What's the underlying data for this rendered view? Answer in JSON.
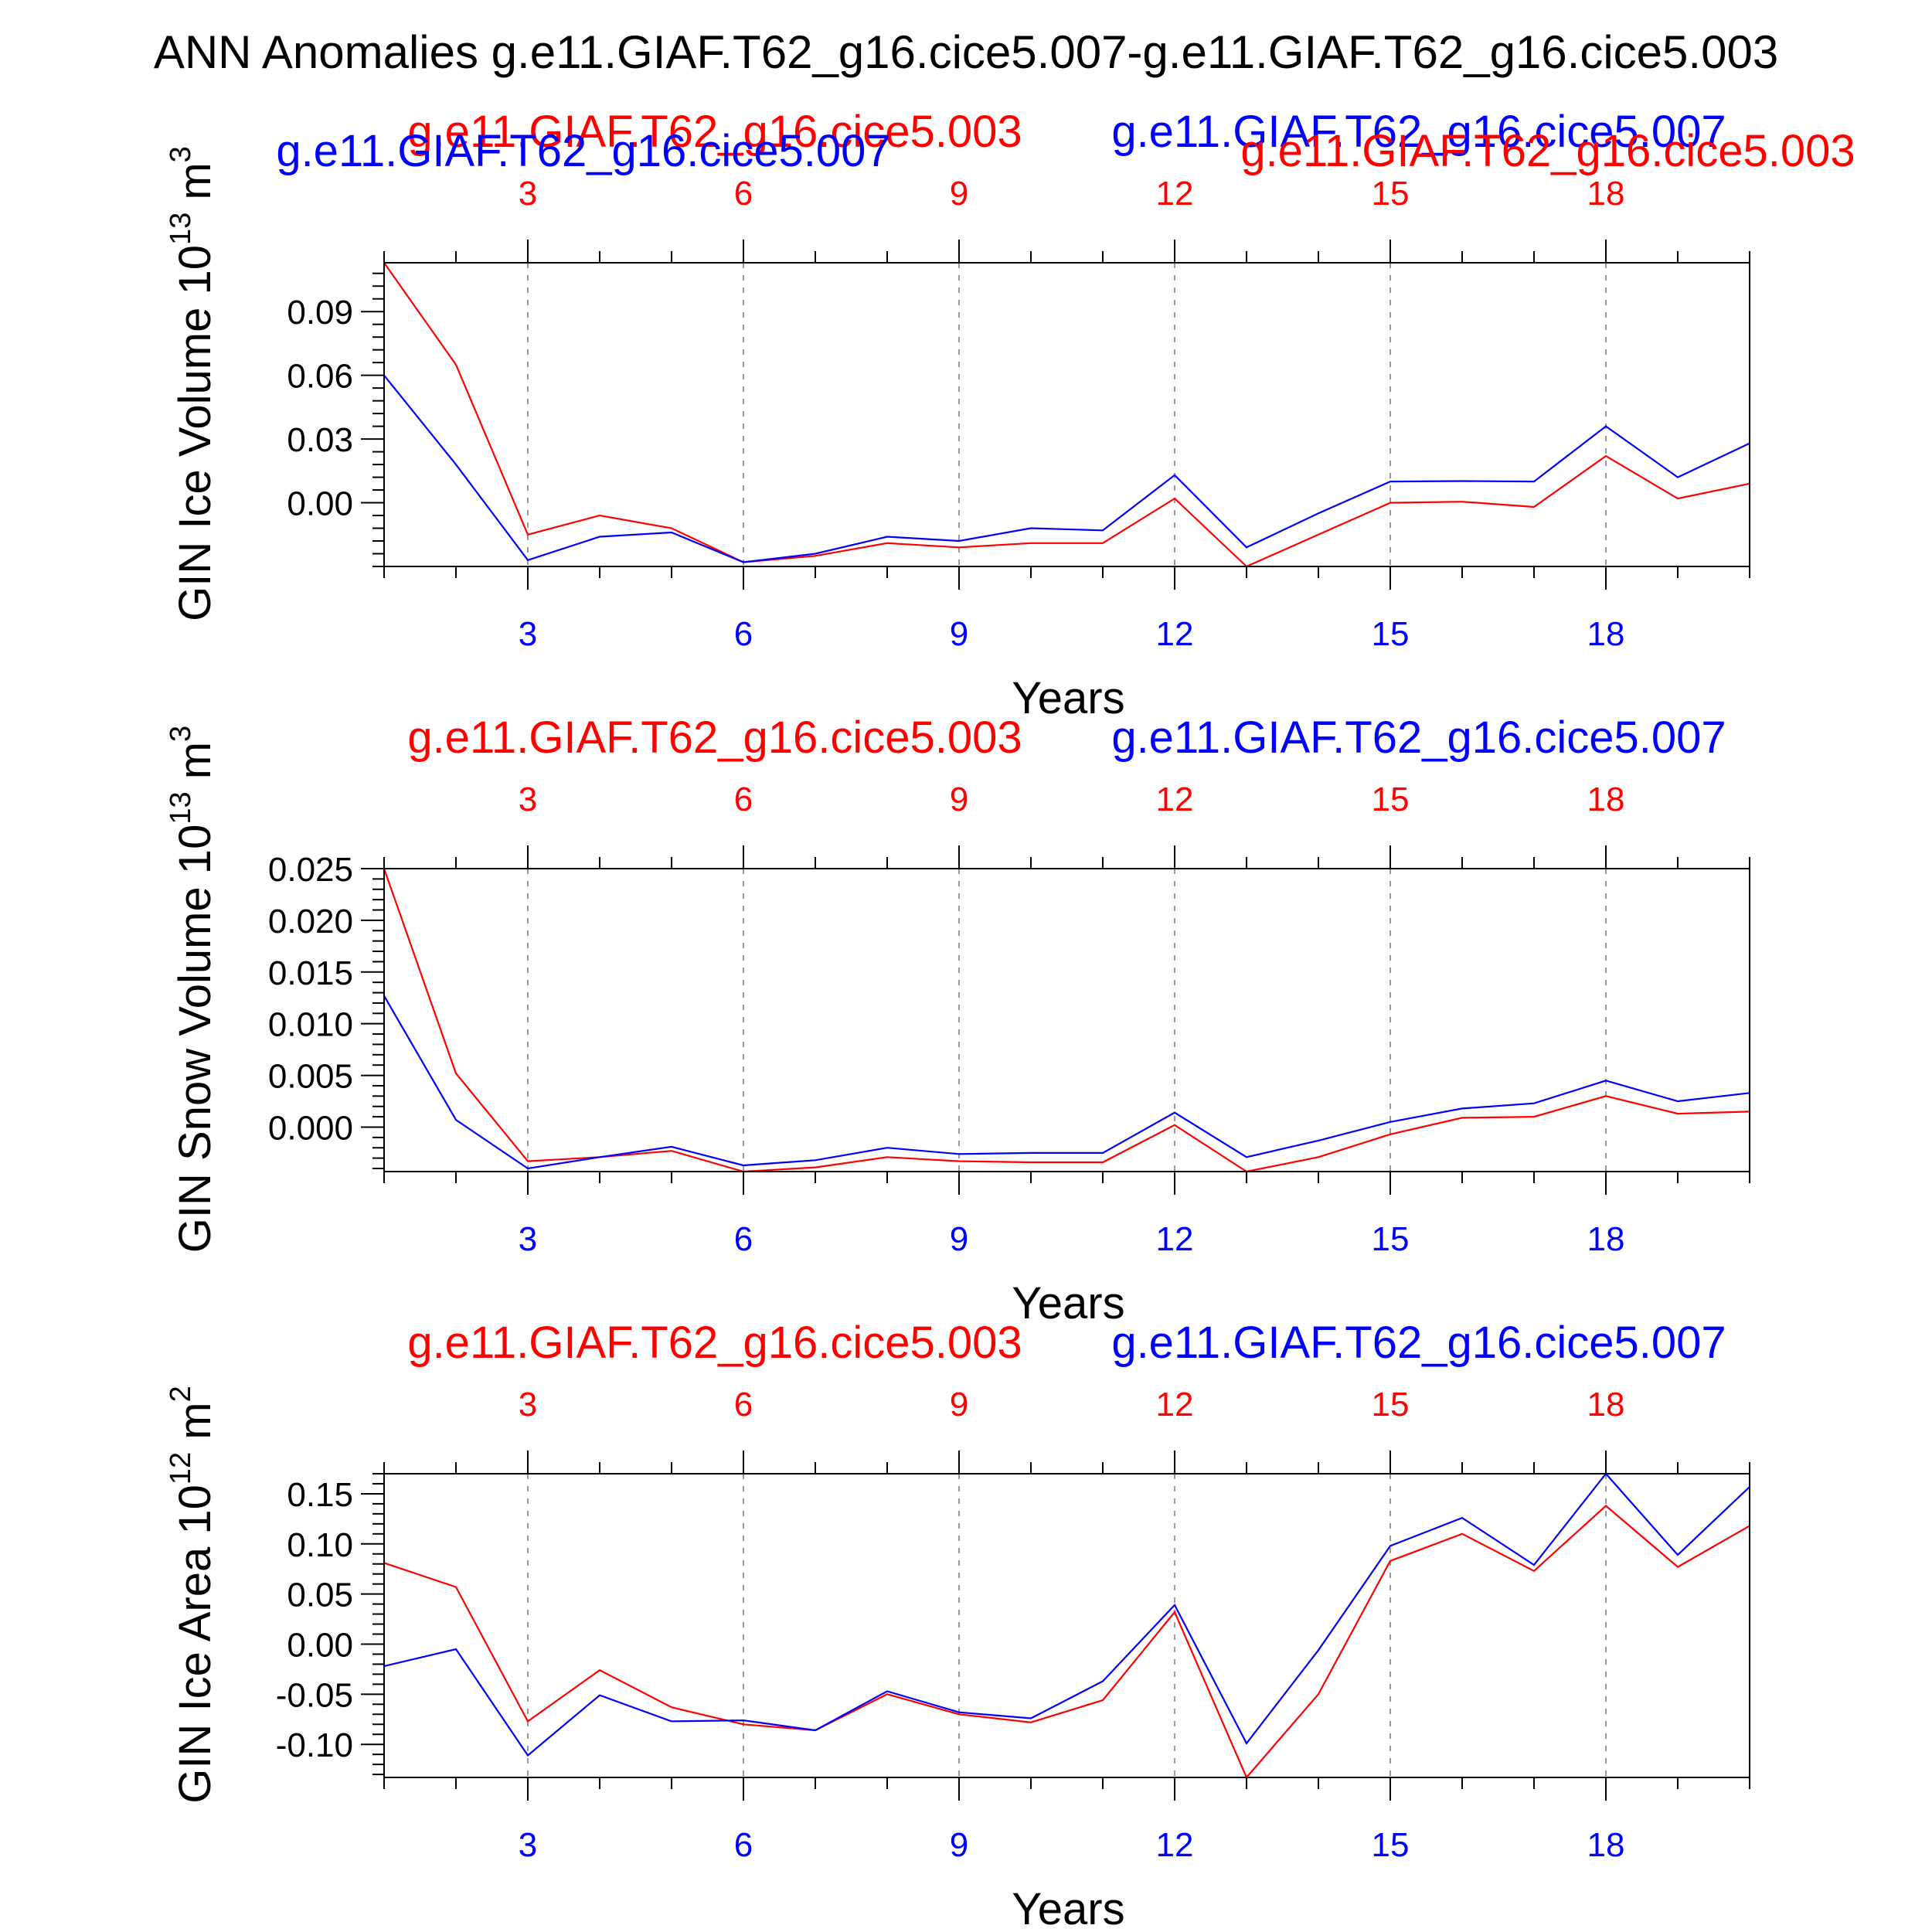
{
  "title": "ANN Anomalies g.e11.GIAF.T62_g16.cice5.007-g.e11.GIAF.T62_g16.cice5.003",
  "colors": {
    "case1": "#ff0000",
    "case2": "#0000ff",
    "axis": "#000000",
    "grid": "#999999"
  },
  "chart_data": [
    {
      "type": "line",
      "ylabel": "GIN Ice Volume 10",
      "ylabel_exp": "13",
      "ylabel_unit": " m",
      "ylabel_unit_exp": "3",
      "xlabel": "Years",
      "xlim": [
        1,
        20
      ],
      "ylim": [
        -0.03,
        0.113
      ],
      "yticks": [
        0.0,
        0.03,
        0.06,
        0.09
      ],
      "ytick_labels": [
        "0.00",
        "0.03",
        "0.06",
        "0.09"
      ],
      "xticks": [
        3,
        6,
        9,
        12,
        15,
        18
      ],
      "xtick_labels": [
        "3",
        "6",
        "9",
        "12",
        "15",
        "18"
      ],
      "grid": "dashed vertical at major x ticks",
      "case_labels": {
        "red": "g.e11.GIAF.T62_g16.cice5.003",
        "blue": "g.e11.GIAF.T62_g16.cice5.007",
        "extra": [
          "g.e11.GIAF.T62_g16.cice5.007",
          "g.e11.GIAF.T62_g16.cice5.003"
        ]
      },
      "x": [
        1,
        2,
        3,
        4,
        5,
        6,
        7,
        8,
        9,
        10,
        11,
        12,
        13,
        14,
        15,
        16,
        17,
        18,
        19,
        20
      ],
      "series": [
        {
          "name": "g.e11.GIAF.T62_g16.cice5.003",
          "color": "#ff0000",
          "values": [
            0.113,
            0.065,
            -0.015,
            -0.006,
            -0.012,
            -0.028,
            -0.025,
            -0.019,
            -0.021,
            -0.019,
            -0.019,
            0.002,
            -0.03,
            -0.015,
            0.0,
            0.0005,
            -0.002,
            0.022,
            0.002,
            0.009
          ]
        },
        {
          "name": "g.e11.GIAF.T62_g16.cice5.007",
          "color": "#0000ff",
          "values": [
            0.06,
            0.018,
            -0.027,
            -0.016,
            -0.014,
            -0.028,
            -0.024,
            -0.016,
            -0.018,
            -0.012,
            -0.013,
            0.013,
            -0.021,
            -0.005,
            0.01,
            0.0102,
            0.01,
            0.036,
            0.012,
            0.028
          ]
        }
      ]
    },
    {
      "type": "line",
      "ylabel": "GIN Snow Volume 10",
      "ylabel_exp": "13",
      "ylabel_unit": " m",
      "ylabel_unit_exp": "3",
      "xlabel": "Years",
      "xlim": [
        1,
        20
      ],
      "ylim": [
        -0.0043,
        0.025
      ],
      "yticks": [
        0.0,
        0.005,
        0.01,
        0.015,
        0.02,
        0.025
      ],
      "ytick_labels": [
        "0.000",
        "0.005",
        "0.010",
        "0.015",
        "0.020",
        "0.025"
      ],
      "xticks": [
        3,
        6,
        9,
        12,
        15,
        18
      ],
      "xtick_labels": [
        "3",
        "6",
        "9",
        "12",
        "15",
        "18"
      ],
      "grid": "dashed vertical at major x ticks",
      "case_labels": {
        "red": "g.e11.GIAF.T62_g16.cice5.003",
        "blue": "g.e11.GIAF.T62_g16.cice5.007"
      },
      "x": [
        1,
        2,
        3,
        4,
        5,
        6,
        7,
        8,
        9,
        10,
        11,
        12,
        13,
        14,
        15,
        16,
        17,
        18,
        19,
        20
      ],
      "series": [
        {
          "name": "g.e11.GIAF.T62_g16.cice5.003",
          "color": "#ff0000",
          "values": [
            0.025,
            0.0052,
            -0.0033,
            -0.0029,
            -0.0023,
            -0.0043,
            -0.0039,
            -0.0029,
            -0.0033,
            -0.0034,
            -0.0034,
            0.0002,
            -0.0043,
            -0.0029,
            -0.0007,
            0.0009,
            0.001,
            0.003,
            0.0013,
            0.0015
          ]
        },
        {
          "name": "g.e11.GIAF.T62_g16.cice5.007",
          "color": "#0000ff",
          "values": [
            0.0127,
            0.0007,
            -0.004,
            -0.0029,
            -0.0019,
            -0.0037,
            -0.0032,
            -0.002,
            -0.0026,
            -0.0025,
            -0.0025,
            0.0014,
            -0.0029,
            -0.0013,
            0.0005,
            0.0018,
            0.0023,
            0.0045,
            0.0025,
            0.0033
          ]
        }
      ]
    },
    {
      "type": "line",
      "ylabel": "GIN Ice Area 10",
      "ylabel_exp": "12",
      "ylabel_unit": " m",
      "ylabel_unit_exp": "2",
      "xlabel": "Years",
      "xlim": [
        1,
        20
      ],
      "ylim": [
        -0.133,
        0.17
      ],
      "yticks": [
        -0.1,
        -0.05,
        0.0,
        0.05,
        0.1,
        0.15
      ],
      "ytick_labels": [
        "-0.10",
        "-0.05",
        "0.00",
        "0.05",
        "0.10",
        "0.15"
      ],
      "xticks": [
        3,
        6,
        9,
        12,
        15,
        18
      ],
      "xtick_labels": [
        "3",
        "6",
        "9",
        "12",
        "15",
        "18"
      ],
      "grid": "dashed vertical at major x ticks",
      "case_labels": {
        "red": "g.e11.GIAF.T62_g16.cice5.003",
        "blue": "g.e11.GIAF.T62_g16.cice5.007"
      },
      "x": [
        1,
        2,
        3,
        4,
        5,
        6,
        7,
        8,
        9,
        10,
        11,
        12,
        13,
        14,
        15,
        16,
        17,
        18,
        19,
        20
      ],
      "series": [
        {
          "name": "g.e11.GIAF.T62_g16.cice5.003",
          "color": "#ff0000",
          "values": [
            0.081,
            0.057,
            -0.077,
            -0.026,
            -0.063,
            -0.08,
            -0.086,
            -0.05,
            -0.07,
            -0.078,
            -0.056,
            0.032,
            -0.133,
            -0.05,
            0.083,
            0.11,
            0.073,
            0.138,
            0.077,
            0.118
          ]
        },
        {
          "name": "g.e11.GIAF.T62_g16.cice5.007",
          "color": "#0000ff",
          "values": [
            -0.022,
            -0.005,
            -0.111,
            -0.051,
            -0.077,
            -0.076,
            -0.086,
            -0.047,
            -0.068,
            -0.074,
            -0.037,
            0.039,
            -0.099,
            -0.006,
            0.098,
            0.126,
            0.079,
            0.17,
            0.089,
            0.157
          ]
        }
      ]
    }
  ]
}
